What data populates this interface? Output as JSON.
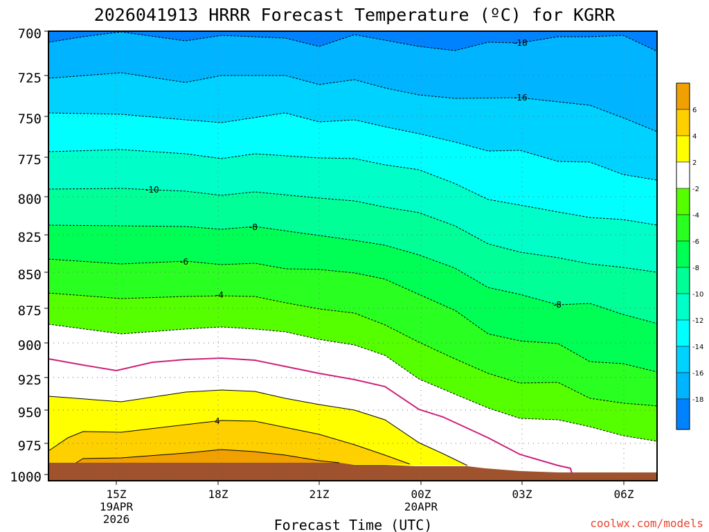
{
  "chart_data": {
    "type": "heatmap",
    "title": "2026041913 HRRR Forecast Temperature (ºC) for KGRR",
    "xlabel": "Forecast Time (UTC)",
    "credit": "coolwx.com/models",
    "y_ticks": [
      "700",
      "725",
      "750",
      "775",
      "800",
      "825",
      "850",
      "875",
      "900",
      "925",
      "950",
      "975",
      "1000"
    ],
    "x_ticks": [
      {
        "label": "15Z",
        "sub": [
          "19APR",
          "2026"
        ]
      },
      {
        "label": "18Z",
        "sub": []
      },
      {
        "label": "21Z",
        "sub": []
      },
      {
        "label": "00Z",
        "sub": [
          "20APR"
        ]
      },
      {
        "label": "03Z",
        "sub": []
      },
      {
        "label": "06Z",
        "sub": []
      }
    ],
    "contour_labels": [
      "-18",
      "-16",
      "-10",
      "-8",
      "-6",
      "-4",
      "4",
      "-8"
    ],
    "colorbar_labels": [
      "6",
      "4",
      "2",
      "-2",
      "-4",
      "-6",
      "-8",
      "-10",
      "-12",
      "-14",
      "-16",
      "-18"
    ],
    "colors": {
      "c_above_6": "#f0a000",
      "c_4_6": "#ffd000",
      "c_2_4": "#ffff00",
      "c_m2_2": "#ffffff",
      "c_m4_m2": "#55ff00",
      "c_m6_m4": "#2aff22",
      "c_m8_m6": "#00ff55",
      "c_m10_m8": "#00ff96",
      "c_m12_m10": "#00ffc8",
      "c_m14_m12": "#00ffff",
      "c_m16_m14": "#00d2ff",
      "c_m18_m16": "#00b4ff",
      "c_below_m18": "#0082ff",
      "ground": "#a0522d",
      "freezing_line": "#cc1f7a"
    }
  }
}
